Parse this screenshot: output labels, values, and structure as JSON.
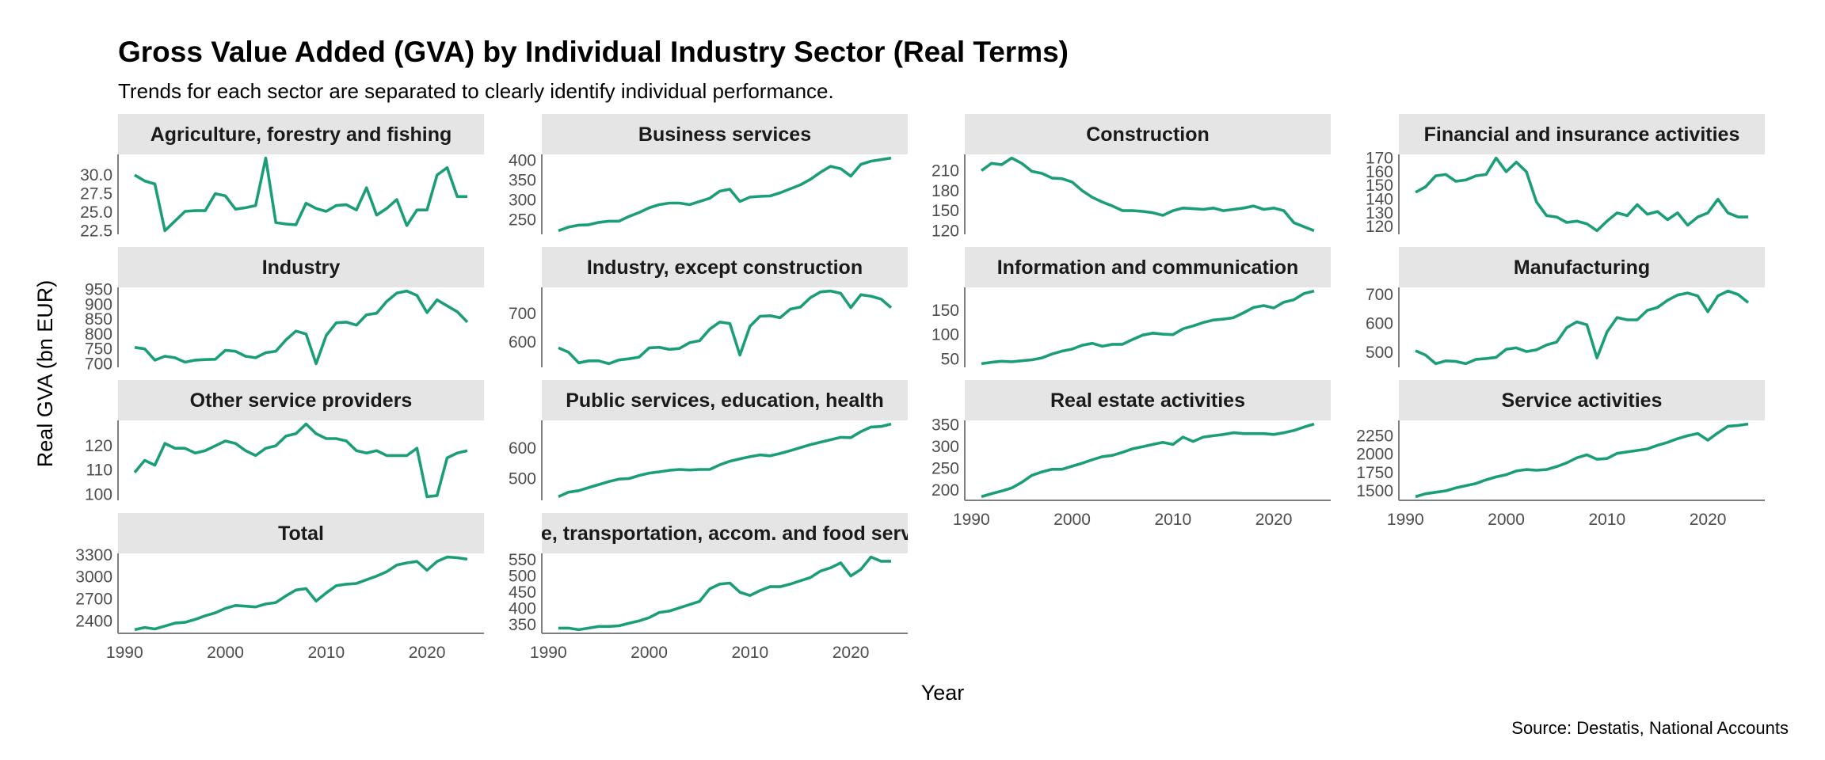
{
  "title": "Gross Value Added (GVA) by Individual Industry Sector (Real Terms)",
  "subtitle": "Trends for each sector are separated to clearly identify individual performance.",
  "caption": "Source: Destatis, National Accounts",
  "chart_data": {
    "type": "line",
    "layout": "small multiples, 4 columns, free y scales",
    "xlabel": "Year",
    "ylabel": "Real GVA (bn EUR)",
    "xlim": [
      1989.35,
      2025.65
    ],
    "x_ticks": [
      1990,
      2000,
      2010,
      2020
    ],
    "x": [
      1991,
      1992,
      1993,
      1994,
      1995,
      1996,
      1997,
      1998,
      1999,
      2000,
      2001,
      2002,
      2003,
      2004,
      2005,
      2006,
      2007,
      2008,
      2009,
      2010,
      2011,
      2012,
      2013,
      2014,
      2015,
      2016,
      2017,
      2018,
      2019,
      2020,
      2021,
      2022,
      2023,
      2024
    ],
    "line_color": "#1b9e77",
    "strip_color": "#e5e5e5",
    "grid": false,
    "panels": [
      {
        "name": "Agriculture, forestry and fishing",
        "y_ticks": [
          "22.5",
          "25.0",
          "27.5",
          "30.0"
        ],
        "values": [
          30.0,
          29.2,
          28.8,
          22.5,
          23.8,
          25.1,
          25.2,
          25.2,
          27.5,
          27.2,
          25.4,
          25.6,
          25.9,
          32.3,
          23.6,
          23.4,
          23.3,
          26.2,
          25.5,
          25.1,
          25.9,
          26.0,
          25.3,
          28.3,
          24.6,
          25.5,
          26.7,
          23.2,
          25.3,
          25.3,
          30.0,
          31.0,
          27.1,
          27.1
        ]
      },
      {
        "name": "Business services",
        "y_ticks": [
          "250",
          "300",
          "350",
          "400"
        ],
        "values": [
          222,
          231,
          236,
          237,
          243,
          246,
          246,
          258,
          268,
          280,
          288,
          292,
          292,
          288,
          296,
          304,
          322,
          327,
          296,
          307,
          309,
          310,
          318,
          328,
          338,
          352,
          370,
          385,
          379,
          360,
          390,
          398,
          402,
          406
        ]
      },
      {
        "name": "Construction",
        "y_ticks": [
          "120",
          "150",
          "180",
          "210"
        ],
        "values": [
          210,
          221,
          219,
          229,
          221,
          209,
          206,
          199,
          198,
          193,
          180,
          170,
          163,
          157,
          150,
          150,
          149,
          147,
          143,
          150,
          154,
          153,
          152,
          154,
          150,
          152,
          154,
          157,
          152,
          154,
          150,
          132,
          126,
          120
        ]
      },
      {
        "name": "Financial and insurance activities",
        "y_ticks": [
          "120",
          "130",
          "140",
          "150",
          "160",
          "170"
        ],
        "values": [
          145,
          149,
          157,
          158,
          153,
          154,
          157,
          158,
          170,
          160,
          167,
          160,
          138,
          128,
          127,
          123,
          124,
          122,
          117,
          124,
          130,
          128,
          136,
          129,
          131,
          125,
          130,
          121,
          127,
          130,
          140,
          130,
          127,
          127
        ]
      },
      {
        "name": "Industry",
        "y_ticks": [
          "700",
          "750",
          "800",
          "850",
          "900",
          "950"
        ],
        "values": [
          755,
          750,
          712,
          725,
          720,
          705,
          712,
          714,
          715,
          745,
          742,
          725,
          720,
          737,
          742,
          780,
          810,
          800,
          700,
          795,
          838,
          840,
          830,
          865,
          870,
          910,
          938,
          945,
          930,
          872,
          915,
          895,
          875,
          840
        ]
      },
      {
        "name": "Industry, except construction",
        "y_ticks": [
          "600",
          "700"
        ],
        "values": [
          580,
          565,
          528,
          535,
          535,
          525,
          538,
          542,
          548,
          580,
          582,
          575,
          578,
          598,
          605,
          645,
          670,
          665,
          555,
          655,
          690,
          692,
          685,
          715,
          722,
          755,
          775,
          778,
          770,
          720,
          765,
          760,
          750,
          720
        ]
      },
      {
        "name": "Information and communication",
        "y_ticks": [
          "50",
          "100",
          "150"
        ],
        "values": [
          40,
          43,
          45,
          44,
          46,
          48,
          52,
          60,
          66,
          70,
          78,
          82,
          76,
          80,
          80,
          90,
          99,
          103,
          101,
          100,
          112,
          118,
          125,
          130,
          132,
          135,
          145,
          156,
          160,
          155,
          167,
          172,
          185,
          190
        ]
      },
      {
        "name": "Manufacturing",
        "y_ticks": [
          "500",
          "600",
          "700"
        ],
        "values": [
          505,
          490,
          460,
          470,
          468,
          460,
          475,
          478,
          482,
          510,
          515,
          502,
          508,
          525,
          535,
          585,
          605,
          595,
          480,
          570,
          620,
          612,
          612,
          645,
          655,
          680,
          698,
          705,
          695,
          640,
          695,
          712,
          700,
          672
        ]
      },
      {
        "name": "Other service providers",
        "y_ticks": [
          "100",
          "110",
          "120"
        ],
        "values": [
          109,
          114,
          112,
          121,
          119,
          119,
          117,
          118,
          120,
          122,
          121,
          118,
          116,
          119,
          120,
          124,
          125,
          129,
          125,
          123,
          123,
          122,
          118,
          117,
          118,
          116,
          116,
          116,
          119,
          99,
          99.5,
          115,
          117,
          118
        ]
      },
      {
        "name": "Public services, education, health",
        "y_ticks": [
          "500",
          "600"
        ],
        "values": [
          440,
          455,
          460,
          470,
          480,
          490,
          498,
          500,
          510,
          518,
          522,
          527,
          530,
          528,
          530,
          530,
          545,
          557,
          565,
          572,
          578,
          575,
          583,
          592,
          602,
          612,
          620,
          628,
          636,
          635,
          655,
          670,
          672,
          680
        ]
      },
      {
        "name": "Real estate activities",
        "y_ticks": [
          "200",
          "250",
          "300",
          "350"
        ],
        "values": [
          185,
          192,
          198,
          205,
          218,
          234,
          242,
          248,
          248,
          255,
          262,
          270,
          277,
          280,
          287,
          295,
          300,
          305,
          310,
          305,
          322,
          312,
          322,
          325,
          328,
          332,
          330,
          330,
          330,
          328,
          332,
          337,
          345,
          352
        ]
      },
      {
        "name": "Service activities",
        "y_ticks": [
          "1500",
          "1750",
          "2000",
          "2250"
        ],
        "values": [
          1420,
          1460,
          1480,
          1500,
          1540,
          1570,
          1600,
          1650,
          1690,
          1720,
          1770,
          1790,
          1780,
          1790,
          1830,
          1880,
          1950,
          1990,
          1930,
          1940,
          2010,
          2030,
          2050,
          2070,
          2120,
          2160,
          2210,
          2250,
          2280,
          2190,
          2290,
          2380,
          2390,
          2410
        ]
      },
      {
        "name": "Total",
        "y_ticks": [
          "2400",
          "2700",
          "3000",
          "3300"
        ],
        "values": [
          2280,
          2310,
          2290,
          2330,
          2370,
          2380,
          2420,
          2470,
          2510,
          2570,
          2610,
          2600,
          2590,
          2630,
          2650,
          2740,
          2820,
          2840,
          2670,
          2780,
          2880,
          2900,
          2910,
          2960,
          3010,
          3070,
          3160,
          3190,
          3210,
          3090,
          3210,
          3270,
          3260,
          3240
        ]
      },
      {
        "name": "Trade, transportation, accom. and food services",
        "y_ticks": [
          "350",
          "400",
          "450",
          "500",
          "550"
        ],
        "values": [
          340,
          340,
          335,
          340,
          345,
          345,
          347,
          355,
          362,
          372,
          388,
          392,
          402,
          412,
          422,
          460,
          475,
          478,
          450,
          440,
          455,
          467,
          467,
          475,
          485,
          495,
          515,
          525,
          540,
          500,
          520,
          558,
          545,
          545
        ]
      }
    ]
  }
}
